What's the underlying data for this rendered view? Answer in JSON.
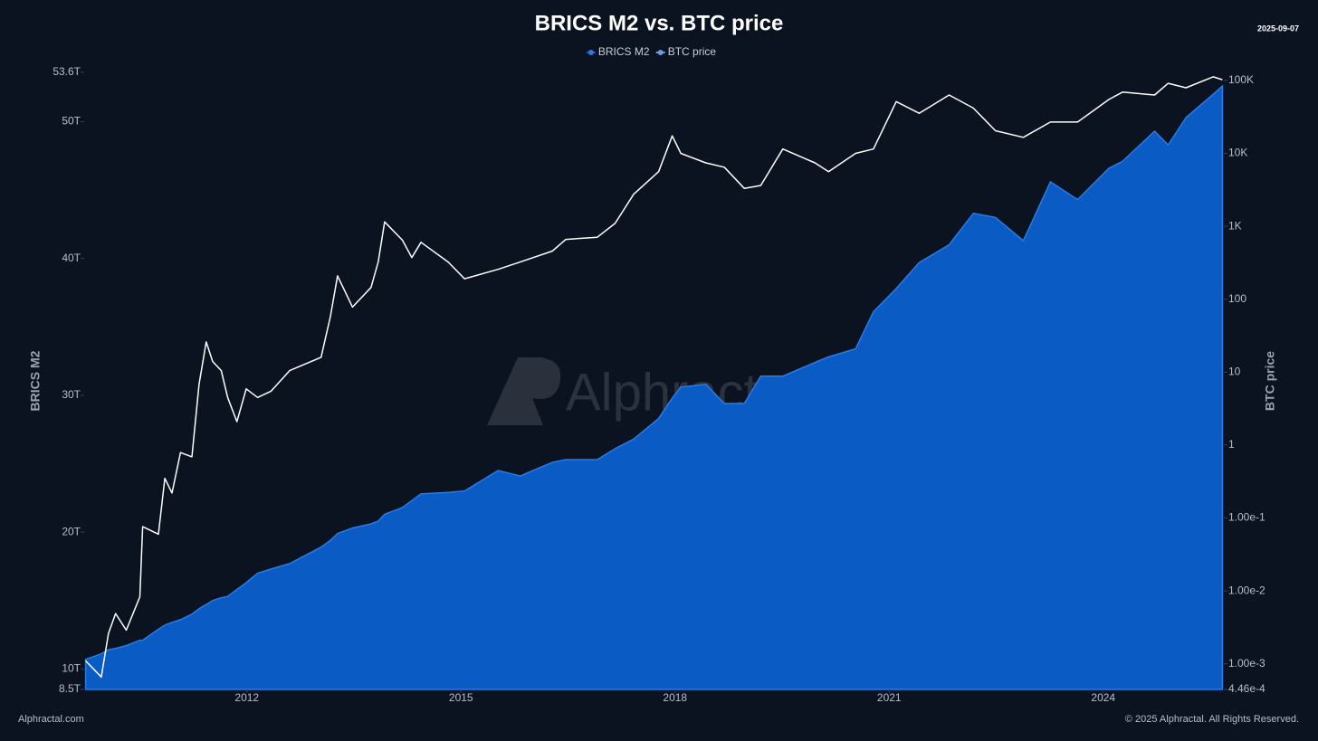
{
  "chart_data": {
    "type": "area-line",
    "title": "BRICS M2 vs. BTC price",
    "date": "2025-09-07",
    "watermark": "Alphractal",
    "footer_left": "Alphractal.com",
    "footer_right": "© 2025 Alphractal. All Rights Reserved.",
    "ylabel": "BRICS M2",
    "y2label": "BTC price",
    "legend": "top",
    "x": [
      2009.74,
      2009.96,
      2010.06,
      2010.16,
      2010.31,
      2010.5,
      2010.54,
      2010.76,
      2010.85,
      2010.95,
      2011.07,
      2011.23,
      2011.33,
      2011.43,
      2011.52,
      2011.64,
      2011.73,
      2011.86,
      2011.99,
      2012.15,
      2012.34,
      2012.6,
      2013.04,
      2013.17,
      2013.27,
      2013.48,
      2013.74,
      2013.84,
      2013.93,
      2014.18,
      2014.31,
      2014.44,
      2014.82,
      2015.05,
      2015.52,
      2015.83,
      2016.28,
      2016.47,
      2016.91,
      2017.16,
      2017.42,
      2017.77,
      2017.96,
      2018.08,
      2018.43,
      2018.69,
      2018.97,
      2019.2,
      2019.51,
      2019.96,
      2020.15,
      2020.53,
      2020.78,
      2021.1,
      2021.42,
      2021.84,
      2022.18,
      2022.49,
      2022.88,
      2023.26,
      2023.64,
      2024.08,
      2024.27,
      2024.72,
      2024.91,
      2025.16,
      2025.54,
      2025.67
    ],
    "series": [
      {
        "name": "BRICS M2",
        "color": "#0a5bc4",
        "edge": "#2a7ae8",
        "values": [
          10.7,
          11.1,
          11.4,
          11.5,
          11.7,
          12.1,
          12.1,
          12.9,
          13.2,
          13.4,
          13.6,
          14.0,
          14.4,
          14.7,
          15.0,
          15.2,
          15.3,
          15.8,
          16.3,
          17.0,
          17.3,
          17.7,
          18.9,
          19.4,
          19.9,
          20.3,
          20.6,
          20.8,
          21.3,
          21.8,
          22.3,
          22.8,
          22.9,
          23.0,
          24.5,
          24.1,
          25.1,
          25.3,
          25.3,
          26.1,
          26.8,
          28.3,
          29.8,
          30.6,
          30.8,
          29.4,
          29.4,
          31.4,
          31.4,
          32.4,
          32.8,
          33.4,
          36.1,
          37.8,
          39.7,
          41.0,
          43.3,
          43.0,
          41.3,
          45.6,
          44.3,
          46.6,
          47.1,
          49.3,
          48.3,
          50.3,
          52.0,
          52.6
        ]
      },
      {
        "name": "BTC price",
        "color": "#ffffff",
        "axis": "y2",
        "values": [
          0.0011,
          0.00066,
          0.0026,
          0.0049,
          0.0029,
          0.0083,
          0.076,
          0.06,
          0.35,
          0.22,
          0.79,
          0.69,
          6.8,
          26,
          14,
          10.5,
          4.5,
          2.1,
          5.9,
          4.5,
          5.5,
          10.5,
          16,
          58,
          209,
          78,
          145,
          324,
          1150,
          645,
          372,
          603,
          324,
          191,
          257,
          324,
          457,
          661,
          708,
          1096,
          2754,
          5623,
          17378,
          10000,
          7413,
          6457,
          3311,
          3631,
          11482,
          7413,
          5623,
          10000,
          11482,
          51286,
          35481,
          63096,
          41687,
          20417,
          16596,
          26915,
          26915,
          54954,
          69183,
          63096,
          91201,
          79433,
          112202,
          102329
        ]
      }
    ],
    "xlim": [
      2009.72,
      2025.69
    ],
    "xticks": [
      2012,
      2015,
      2018,
      2021,
      2024
    ],
    "ylim": [
      8.5,
      53.6
    ],
    "yticks": [
      {
        "value": 8.5,
        "label": "8.5T"
      },
      {
        "value": 10,
        "label": "10T"
      },
      {
        "value": 20,
        "label": "20T"
      },
      {
        "value": 30,
        "label": "30T"
      },
      {
        "value": 40,
        "label": "40T"
      },
      {
        "value": 50,
        "label": "50T"
      },
      {
        "value": 53.6,
        "label": "53.6T"
      }
    ],
    "y2lim": [
      0.000446,
      129000
    ],
    "y2scale": "log",
    "y2ticks": [
      {
        "value": 0.000446,
        "label": "4.46e-4"
      },
      {
        "value": 0.001,
        "label": "1.00e-3"
      },
      {
        "value": 0.01,
        "label": "1.00e-2"
      },
      {
        "value": 0.1,
        "label": "1.00e-1"
      },
      1,
      10,
      100,
      {
        "value": 1000,
        "label": "1K"
      },
      {
        "value": 10000,
        "label": "10K"
      },
      {
        "value": 100000,
        "label": "100K"
      }
    ],
    "grid": false
  }
}
